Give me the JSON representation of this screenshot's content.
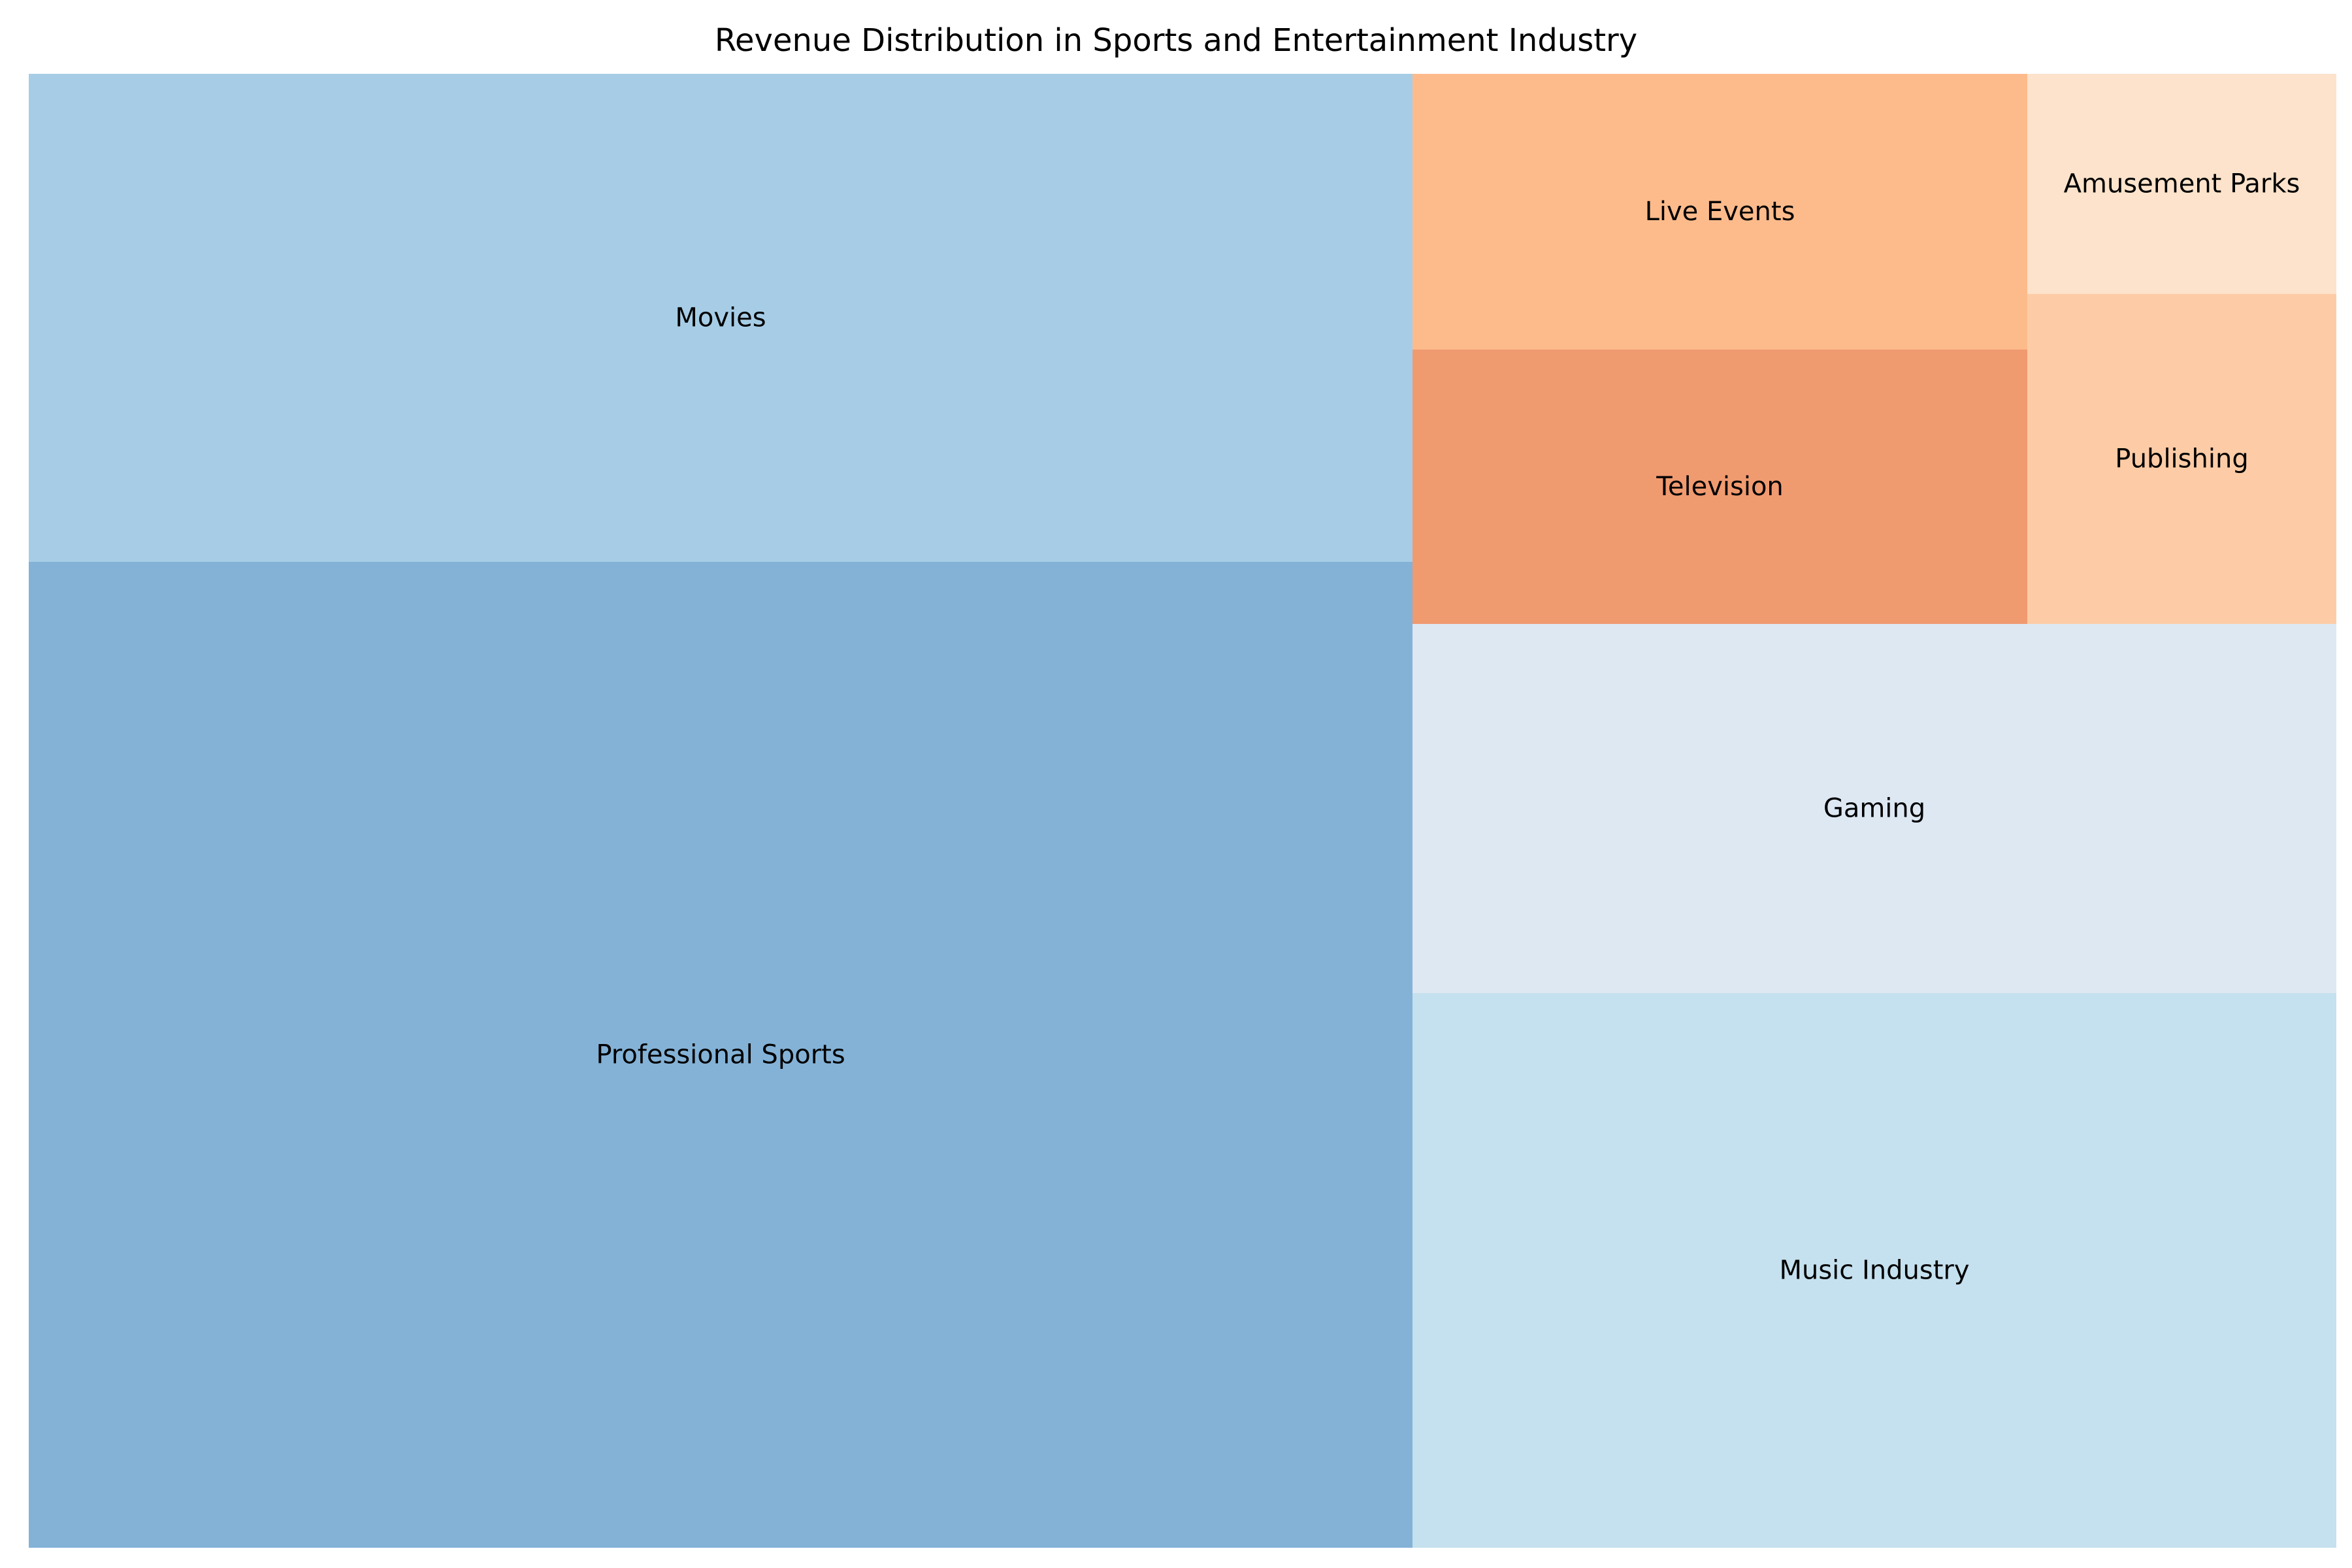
{
  "chart_data": {
    "type": "treemap",
    "title": "Revenue Distribution in Sports and Entertainment Industry",
    "tiles": [
      {
        "label": "Professional Sports",
        "color": "#84b2d7"
      },
      {
        "label": "Movies",
        "color": "#a7cde6"
      },
      {
        "label": "Music Industry",
        "color": "#c5e0ee"
      },
      {
        "label": "Gaming",
        "color": "#dde8f3"
      },
      {
        "label": "Live Events",
        "color": "#fdbb8c"
      },
      {
        "label": "Television",
        "color": "#f09a70"
      },
      {
        "label": "Amusement Parks",
        "color": "#fde3cb"
      },
      {
        "label": "Publishing",
        "color": "#fdcca6"
      }
    ]
  }
}
